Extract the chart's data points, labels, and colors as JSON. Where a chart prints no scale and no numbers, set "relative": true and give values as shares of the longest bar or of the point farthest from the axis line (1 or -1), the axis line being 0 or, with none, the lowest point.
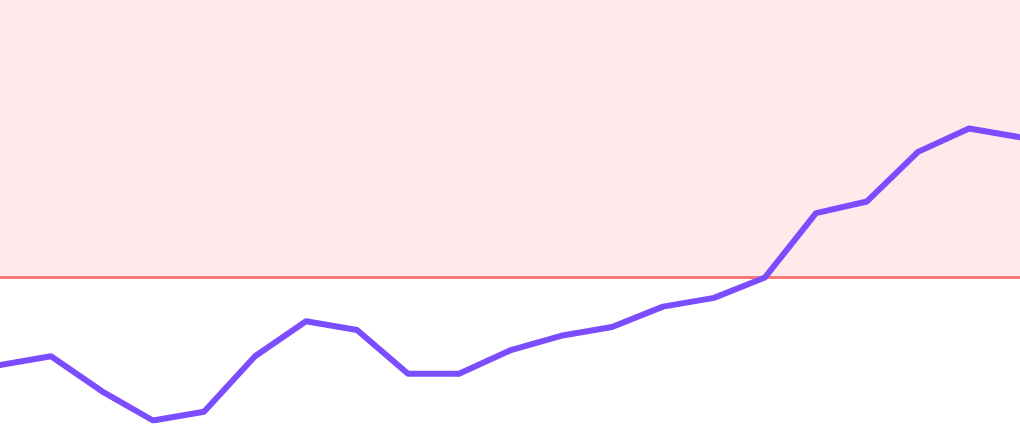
{
  "chart_data": {
    "type": "line",
    "relative": true,
    "categories": [
      null,
      null,
      null,
      null,
      null,
      null,
      null,
      null,
      null,
      null,
      null,
      null,
      null,
      null,
      null,
      null,
      null,
      null,
      null,
      null,
      null
    ],
    "series": [
      {
        "color": "#7c4dff",
        "values": [
          0.19,
          0.22,
          0.1,
          0,
          0.03,
          0.22,
          0.34,
          0.31,
          0.16,
          0.16,
          0.24,
          0.29,
          0.32,
          0.39,
          0.42,
          0.49,
          0.71,
          0.75,
          0.92,
          1.0,
          0.97
        ]
      }
    ],
    "ref_lines": [
      {
        "axis": "y",
        "value": 0.49,
        "color": "#ff7b7b"
      }
    ],
    "bands": [
      {
        "axis": "y",
        "from": 0.49,
        "to": 1.44,
        "color": "#ffe9ea"
      }
    ]
  }
}
